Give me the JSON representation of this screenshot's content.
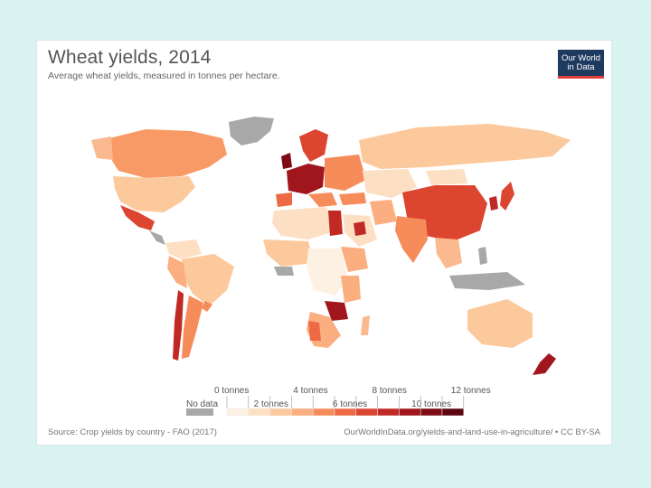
{
  "header": {
    "title": "Wheat yields, 2014",
    "subtitle": "Average wheat yields, measured in tonnes per hectare."
  },
  "logo": {
    "line1": "Our World",
    "line2": "in Data"
  },
  "legend": {
    "no_data_label": "No data",
    "top_labels": [
      "0 tonnes",
      "4 tonnes",
      "8 tonnes",
      "12 tonnes"
    ],
    "bottom_labels": [
      "2 tonnes",
      "6 tonnes",
      "10 tonnes"
    ],
    "colors": [
      "#fdf1e4",
      "#fde0c3",
      "#fcc99c",
      "#fbae7f",
      "#f78c5b",
      "#ee6a44",
      "#dc4530",
      "#c12a24",
      "#a1151c",
      "#7f0b14",
      "#5c0510"
    ],
    "no_data_color": "#a8a8a8"
  },
  "footer": {
    "source": "Source: Crop yields by country - FAO (2017)",
    "url": "OurWorldInData.org/yields-and-land-use-in-agriculture/ • CC BY-SA"
  }
}
